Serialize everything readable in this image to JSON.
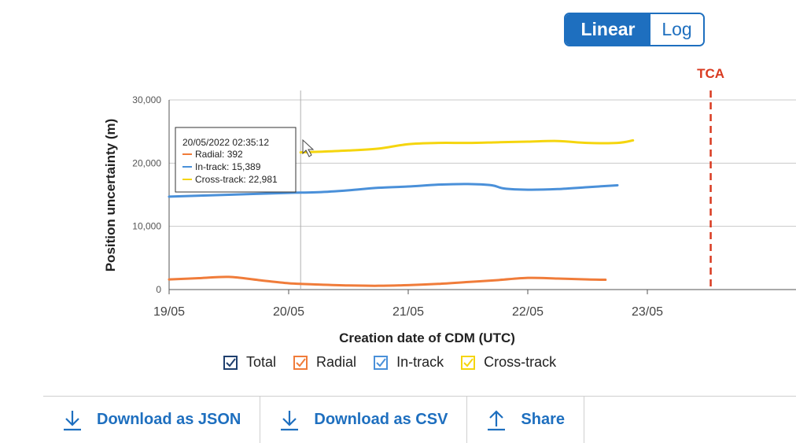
{
  "scale_toggle": {
    "linear_label": "Linear",
    "log_label": "Log",
    "selected": "Linear"
  },
  "colors": {
    "accent": "#1e6fbf",
    "total": "#1f3f6e",
    "radial": "#f07c3a",
    "in_track": "#4a90d9",
    "cross_track": "#f5d50e",
    "tca": "#d93a20"
  },
  "chart_data": {
    "type": "line",
    "xlabel": "Creation date of CDM (UTC)",
    "ylabel": "Position uncertainty (m)",
    "ylim": [
      0,
      30000
    ],
    "y_ticks": [
      0,
      10000,
      20000,
      30000
    ],
    "y_tick_labels": [
      "0",
      "10,000",
      "20,000",
      "30,000"
    ],
    "x_ticks": [
      0,
      1,
      2,
      3,
      4
    ],
    "x_tick_labels": [
      "19/05",
      "20/05",
      "21/05",
      "22/05",
      "23/05"
    ],
    "xlim": [
      0,
      4.5
    ],
    "grid": true,
    "tca": {
      "label": "TCA",
      "x": 4.53
    },
    "series": [
      {
        "name": "Radial",
        "color_key": "radial",
        "x": [
          0,
          0.25,
          0.5,
          0.75,
          1.0,
          1.25,
          1.5,
          1.75,
          2.0,
          2.25,
          2.5,
          2.75,
          3.0,
          3.25,
          3.5,
          3.65
        ],
        "y": [
          1600,
          1800,
          2000,
          1500,
          1000,
          800,
          650,
          600,
          700,
          900,
          1200,
          1500,
          1850,
          1750,
          1600,
          1550
        ]
      },
      {
        "name": "In-track",
        "color_key": "in_track",
        "x": [
          0,
          0.5,
          1.0,
          1.25,
          1.5,
          1.75,
          2.0,
          2.25,
          2.5,
          2.7,
          2.8,
          3.0,
          3.25,
          3.5,
          3.75
        ],
        "y": [
          14700,
          15000,
          15300,
          15400,
          15700,
          16100,
          16300,
          16600,
          16700,
          16500,
          16000,
          15800,
          15900,
          16200,
          16500
        ]
      },
      {
        "name": "Cross-track",
        "color_key": "cross_track",
        "x": [
          1.1,
          1.25,
          1.5,
          1.75,
          2.0,
          2.25,
          2.5,
          2.75,
          3.0,
          3.25,
          3.5,
          3.75,
          3.88
        ],
        "y": [
          21700,
          21800,
          22000,
          22300,
          23000,
          23200,
          23200,
          23300,
          23400,
          23500,
          23200,
          23200,
          23600
        ]
      }
    ],
    "tooltip": {
      "title": "20/05/2022 02:35:12",
      "x": 1.1,
      "rows": [
        {
          "label": "Radial: 392",
          "color_key": "radial"
        },
        {
          "label": "In-track: 15,389",
          "color_key": "in_track"
        },
        {
          "label": "Cross-track: 22,981",
          "color_key": "cross_track"
        }
      ]
    }
  },
  "legend": [
    {
      "label": "Total",
      "color_key": "total"
    },
    {
      "label": "Radial",
      "color_key": "radial"
    },
    {
      "label": "In-track",
      "color_key": "in_track"
    },
    {
      "label": "Cross-track",
      "color_key": "cross_track"
    }
  ],
  "actions": {
    "download_json": {
      "label": "Download as JSON",
      "icon": "download-icon"
    },
    "download_csv": {
      "label": "Download as CSV",
      "icon": "download-icon"
    },
    "share": {
      "label": "Share",
      "icon": "share-icon"
    }
  }
}
